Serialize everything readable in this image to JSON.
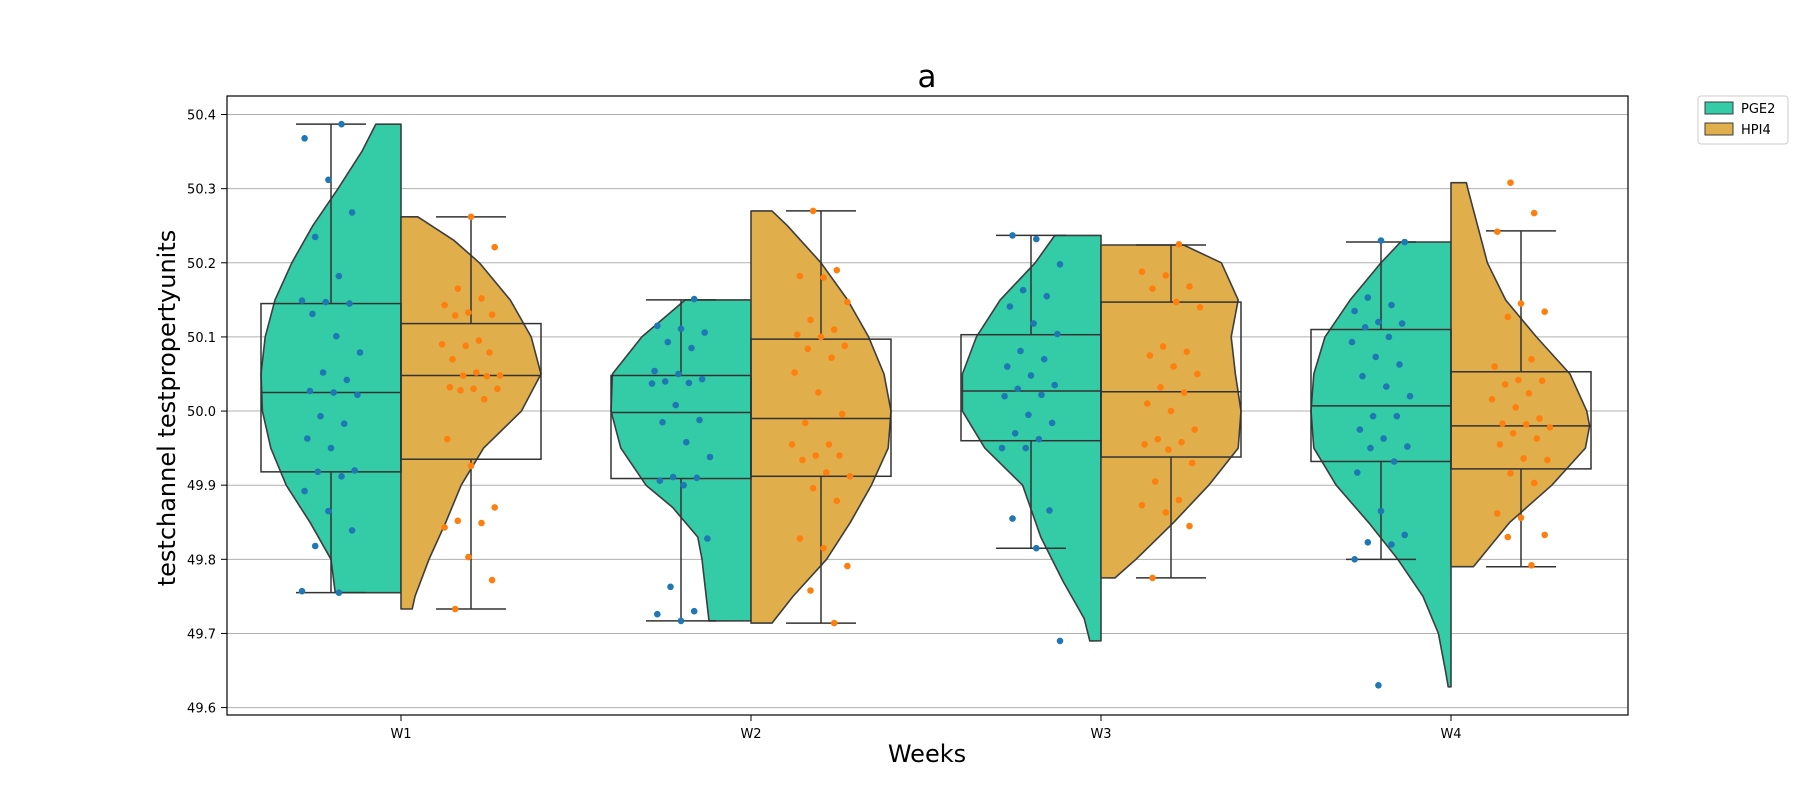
{
  "chart_data": {
    "type": "violin",
    "title": "a",
    "xlabel": "Weeks",
    "ylabel": "testchannel testpropertyunits",
    "categories": [
      "W1",
      "W2",
      "W3",
      "W4"
    ],
    "ylim": [
      49.59,
      50.425
    ],
    "yticks": [
      49.6,
      49.7,
      49.8,
      49.9,
      50.0,
      50.1,
      50.2,
      50.3,
      50.4
    ],
    "ytick_labels": [
      "49.6",
      "49.7",
      "49.8",
      "49.9",
      "50.0",
      "50.1",
      "50.2",
      "50.3",
      "50.4"
    ],
    "grid": "horizontal",
    "legend_position": "top-right outside",
    "series": [
      {
        "name": "PGE2",
        "violin_color": "#33cca6",
        "point_color": "#1f77b4",
        "box": [
          {
            "min": 49.755,
            "q1": 49.918,
            "median": 50.025,
            "q3": 50.145,
            "max": 50.387
          },
          {
            "min": 49.717,
            "q1": 49.909,
            "median": 49.998,
            "q3": 50.048,
            "max": 50.15
          },
          {
            "min": 49.815,
            "q1": 49.96,
            "median": 50.027,
            "q3": 50.103,
            "max": 50.237
          },
          {
            "min": 49.8,
            "q1": 49.932,
            "median": 50.007,
            "q3": 50.11,
            "max": 50.228
          }
        ],
        "density": [
          [
            [
              49.755,
              0.47
            ],
            [
              49.8,
              0.5
            ],
            [
              49.85,
              0.65
            ],
            [
              49.9,
              0.82
            ],
            [
              49.95,
              0.93
            ],
            [
              50.0,
              0.99
            ],
            [
              50.05,
              1.0
            ],
            [
              50.1,
              0.97
            ],
            [
              50.15,
              0.9
            ],
            [
              50.2,
              0.78
            ],
            [
              50.25,
              0.63
            ],
            [
              50.3,
              0.45
            ],
            [
              50.35,
              0.28
            ],
            [
              50.387,
              0.18
            ]
          ],
          [
            [
              49.717,
              0.3
            ],
            [
              49.75,
              0.32
            ],
            [
              49.8,
              0.35
            ],
            [
              49.83,
              0.38
            ],
            [
              49.87,
              0.56
            ],
            [
              49.9,
              0.75
            ],
            [
              49.95,
              0.93
            ],
            [
              50.0,
              1.0
            ],
            [
              50.05,
              0.99
            ],
            [
              50.1,
              0.78
            ],
            [
              50.15,
              0.47
            ]
          ],
          [
            [
              49.69,
              0.08
            ],
            [
              49.72,
              0.12
            ],
            [
              49.77,
              0.27
            ],
            [
              49.83,
              0.43
            ],
            [
              49.9,
              0.56
            ],
            [
              49.95,
              0.83
            ],
            [
              50.0,
              0.99
            ],
            [
              50.05,
              0.99
            ],
            [
              50.1,
              0.89
            ],
            [
              50.15,
              0.72
            ],
            [
              50.2,
              0.47
            ],
            [
              50.237,
              0.33
            ]
          ],
          [
            [
              49.628,
              0.02
            ],
            [
              49.65,
              0.04
            ],
            [
              49.7,
              0.09
            ],
            [
              49.75,
              0.2
            ],
            [
              49.8,
              0.38
            ],
            [
              49.85,
              0.59
            ],
            [
              49.9,
              0.82
            ],
            [
              49.95,
              0.98
            ],
            [
              50.0,
              1.0
            ],
            [
              50.05,
              0.98
            ],
            [
              50.1,
              0.9
            ],
            [
              50.15,
              0.72
            ],
            [
              50.2,
              0.5
            ],
            [
              50.228,
              0.36
            ]
          ]
        ],
        "points": [
          [
            49.757,
            49.755,
            49.818,
            49.839,
            49.865,
            49.892,
            49.912,
            49.918,
            49.92,
            49.95,
            49.963,
            49.983,
            49.993,
            50.022,
            50.025,
            50.027,
            50.042,
            50.052,
            50.079,
            50.101,
            50.131,
            50.145,
            50.147,
            50.149,
            50.182,
            50.235,
            50.268,
            50.312,
            50.368,
            50.387
          ],
          [
            49.717,
            49.726,
            49.73,
            49.763,
            49.828,
            49.9,
            49.906,
            49.91,
            49.911,
            49.938,
            49.958,
            49.985,
            49.988,
            50.008,
            50.037,
            50.038,
            50.04,
            50.043,
            50.05,
            50.054,
            50.085,
            50.093,
            50.106,
            50.111,
            50.115,
            50.151
          ],
          [
            49.69,
            49.815,
            49.855,
            49.866,
            49.95,
            49.95,
            49.962,
            49.97,
            49.984,
            49.995,
            50.02,
            50.022,
            50.03,
            50.035,
            50.048,
            50.06,
            50.07,
            50.081,
            50.104,
            50.118,
            50.141,
            50.155,
            50.163,
            50.198,
            50.232,
            50.237
          ],
          [
            49.63,
            49.8,
            49.82,
            49.823,
            49.833,
            49.865,
            49.917,
            49.932,
            49.95,
            49.952,
            49.963,
            49.975,
            49.993,
            49.993,
            50.02,
            50.033,
            50.047,
            50.063,
            50.073,
            50.093,
            50.1,
            50.113,
            50.118,
            50.12,
            50.135,
            50.143,
            50.153,
            50.228,
            50.23
          ]
        ]
      },
      {
        "name": "HPI4",
        "violin_color": "#e0ae4b",
        "point_color": "#ff7f0e",
        "box": [
          {
            "min": 49.733,
            "q1": 49.935,
            "median": 50.048,
            "q3": 50.118,
            "max": 50.262
          },
          {
            "min": 49.714,
            "q1": 49.912,
            "median": 49.99,
            "q3": 50.097,
            "max": 50.27
          },
          {
            "min": 49.775,
            "q1": 49.938,
            "median": 50.026,
            "q3": 50.147,
            "max": 50.224
          },
          {
            "min": 49.79,
            "q1": 49.922,
            "median": 49.98,
            "q3": 50.053,
            "max": 50.243
          }
        ],
        "density": [
          [
            [
              49.733,
              0.08
            ],
            [
              49.75,
              0.1
            ],
            [
              49.8,
              0.2
            ],
            [
              49.85,
              0.32
            ],
            [
              49.9,
              0.43
            ],
            [
              49.95,
              0.59
            ],
            [
              50.0,
              0.86
            ],
            [
              50.05,
              1.0
            ],
            [
              50.1,
              0.93
            ],
            [
              50.15,
              0.78
            ],
            [
              50.2,
              0.56
            ],
            [
              50.23,
              0.38
            ],
            [
              50.262,
              0.12
            ]
          ],
          [
            [
              49.714,
              0.15
            ],
            [
              49.75,
              0.3
            ],
            [
              49.8,
              0.54
            ],
            [
              49.85,
              0.71
            ],
            [
              49.9,
              0.86
            ],
            [
              49.95,
              0.98
            ],
            [
              50.0,
              1.0
            ],
            [
              50.05,
              0.95
            ],
            [
              50.1,
              0.84
            ],
            [
              50.15,
              0.69
            ],
            [
              50.2,
              0.5
            ],
            [
              50.25,
              0.26
            ],
            [
              50.27,
              0.15
            ]
          ],
          [
            [
              49.775,
              0.1
            ],
            [
              49.8,
              0.25
            ],
            [
              49.85,
              0.52
            ],
            [
              49.9,
              0.77
            ],
            [
              49.95,
              0.98
            ],
            [
              50.0,
              1.0
            ],
            [
              50.05,
              0.96
            ],
            [
              50.1,
              0.93
            ],
            [
              50.15,
              0.98
            ],
            [
              50.2,
              0.86
            ],
            [
              50.224,
              0.59
            ]
          ],
          [
            [
              49.79,
              0.16
            ],
            [
              49.85,
              0.42
            ],
            [
              49.9,
              0.72
            ],
            [
              49.95,
              0.96
            ],
            [
              49.98,
              0.99
            ],
            [
              50.0,
              0.97
            ],
            [
              50.05,
              0.85
            ],
            [
              50.1,
              0.61
            ],
            [
              50.15,
              0.39
            ],
            [
              50.2,
              0.26
            ],
            [
              50.25,
              0.19
            ],
            [
              50.3,
              0.12
            ],
            [
              50.308,
              0.11
            ]
          ]
        ],
        "points": [
          [
            49.733,
            49.772,
            49.803,
            49.843,
            49.849,
            49.852,
            49.87,
            49.926,
            49.962,
            50.016,
            50.028,
            50.03,
            50.03,
            50.032,
            50.047,
            50.048,
            50.048,
            50.052,
            50.07,
            50.079,
            50.088,
            50.09,
            50.095,
            50.129,
            50.13,
            50.133,
            50.143,
            50.152,
            50.165,
            50.221,
            50.262
          ],
          [
            49.714,
            49.758,
            49.791,
            49.815,
            49.828,
            49.879,
            49.896,
            49.912,
            49.917,
            49.934,
            49.94,
            49.94,
            49.955,
            49.955,
            49.984,
            49.996,
            50.025,
            50.052,
            50.072,
            50.084,
            50.088,
            50.1,
            50.103,
            50.11,
            50.123,
            50.147,
            50.18,
            50.182,
            50.19,
            50.27
          ],
          [
            49.775,
            49.845,
            49.863,
            49.873,
            49.88,
            49.905,
            49.93,
            49.948,
            49.955,
            49.958,
            49.962,
            49.975,
            50.0,
            50.01,
            50.025,
            50.032,
            50.05,
            50.06,
            50.075,
            50.08,
            50.087,
            50.14,
            50.147,
            50.165,
            50.168,
            50.183,
            50.188,
            50.225
          ],
          [
            49.792,
            49.83,
            49.833,
            49.856,
            49.862,
            49.903,
            49.916,
            49.934,
            49.936,
            49.955,
            49.963,
            49.97,
            49.978,
            49.982,
            49.983,
            49.99,
            50.005,
            50.016,
            50.024,
            50.036,
            50.041,
            50.042,
            50.06,
            50.07,
            50.127,
            50.134,
            50.145,
            50.242,
            50.267,
            50.308
          ]
        ]
      }
    ]
  }
}
